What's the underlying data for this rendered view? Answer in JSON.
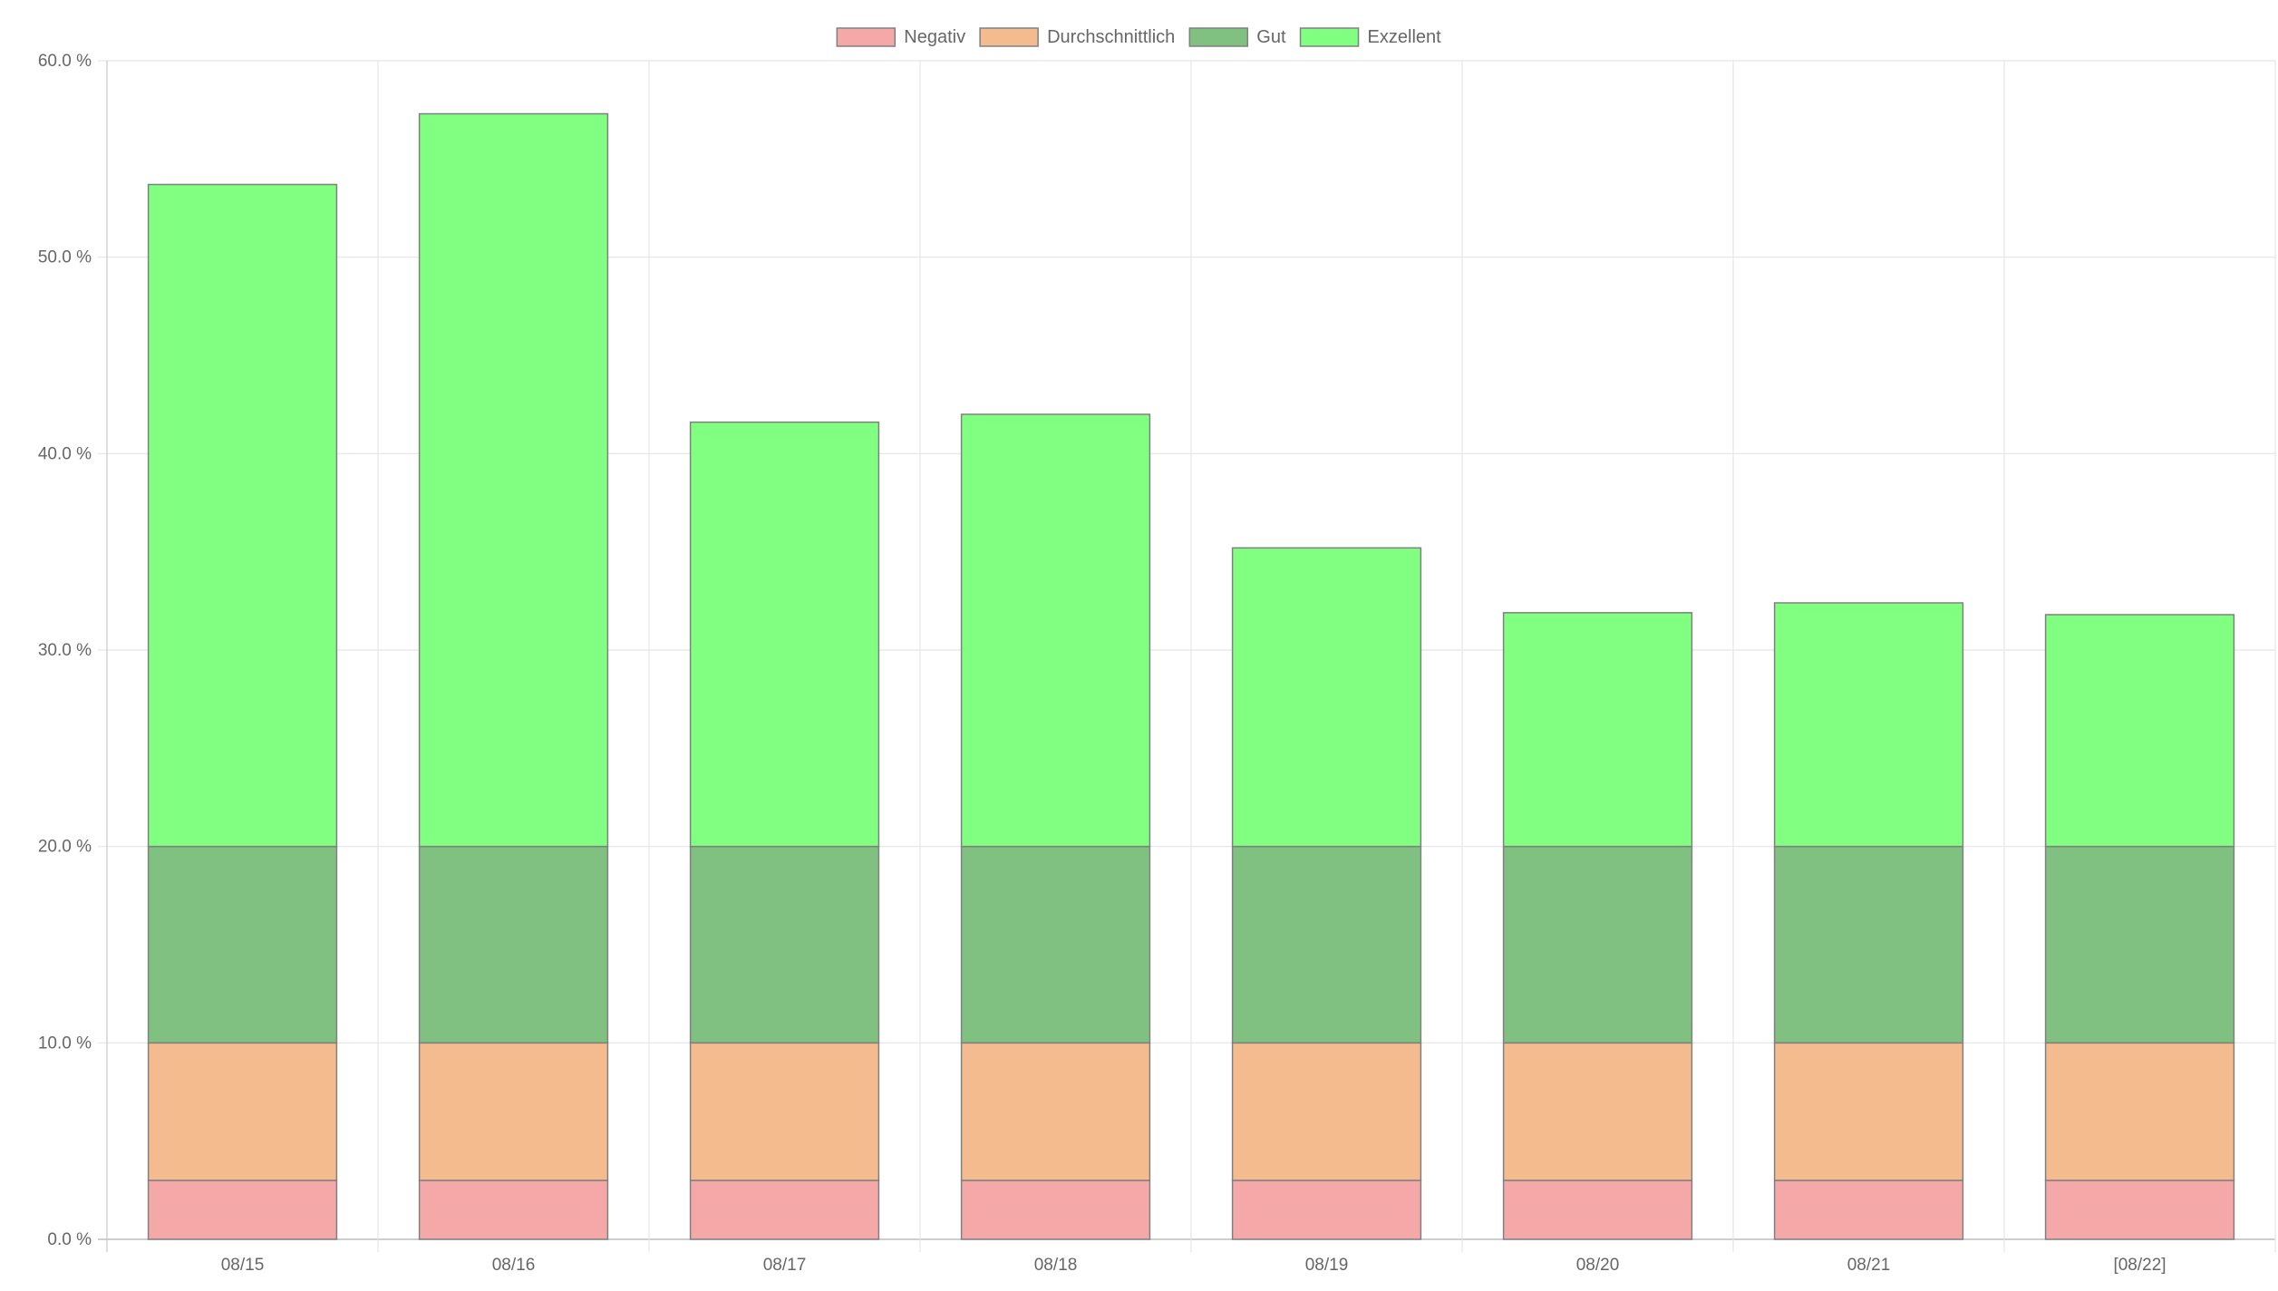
{
  "chart_data": {
    "type": "bar",
    "stacked": true,
    "categories": [
      "08/15",
      "08/16",
      "08/17",
      "08/18",
      "08/19",
      "08/20",
      "08/21",
      "[08/22]"
    ],
    "series": [
      {
        "name": "Negativ",
        "color": "#f4a9a8",
        "values": [
          3.0,
          3.0,
          3.0,
          3.0,
          3.0,
          3.0,
          3.0,
          3.0
        ]
      },
      {
        "name": "Durchschnittlich",
        "color": "#f4bc8e",
        "values": [
          7.0,
          7.0,
          7.0,
          7.0,
          7.0,
          7.0,
          7.0,
          7.0
        ]
      },
      {
        "name": "Gut",
        "color": "#80c080",
        "values": [
          10.0,
          10.0,
          10.0,
          10.0,
          10.0,
          10.0,
          10.0,
          10.0
        ]
      },
      {
        "name": "Exzellent",
        "color": "#80ff80",
        "values": [
          33.7,
          37.3,
          21.6,
          22.0,
          15.2,
          11.9,
          12.4,
          11.8
        ]
      }
    ],
    "ylim": [
      0,
      60
    ],
    "yticks": [
      0,
      10,
      20,
      30,
      40,
      50,
      60
    ],
    "ytick_labels": [
      "0.0 %",
      "10.0 %",
      "20.0 %",
      "30.0 %",
      "40.0 %",
      "50.0 %",
      "60.0 %"
    ],
    "title": "",
    "xlabel": "",
    "ylabel": "",
    "grid": true,
    "legend_position": "top-center",
    "bar_border_color": "#808080",
    "grid_color": "#e5e5e5"
  }
}
